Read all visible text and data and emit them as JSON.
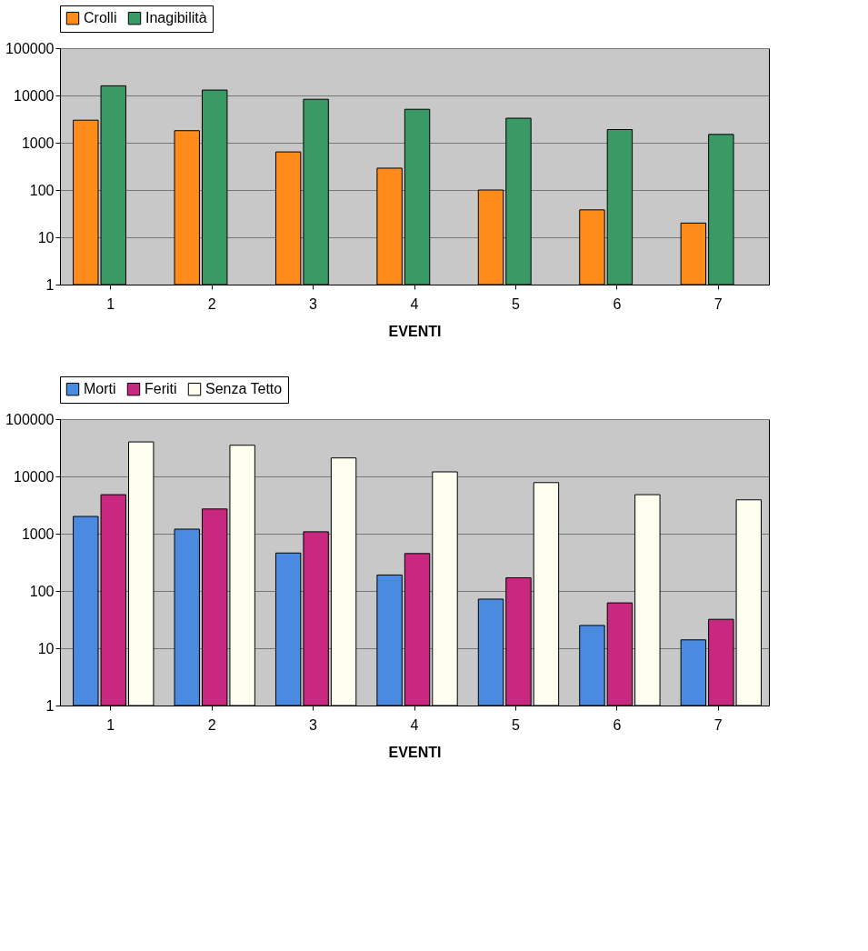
{
  "chart_data": [
    {
      "type": "bar",
      "xlabel": "EVENTI",
      "categories": [
        "1",
        "2",
        "3",
        "4",
        "5",
        "6",
        "7"
      ],
      "log": true,
      "ylim": [
        1,
        100000
      ],
      "yticks": [
        1,
        10,
        100,
        1000,
        10000,
        100000
      ],
      "grid": "y",
      "legend": "top",
      "series": [
        {
          "name": "Crolli",
          "color": "#ff8c1a",
          "values": [
            3000,
            1800,
            640,
            290,
            100,
            38,
            20
          ]
        },
        {
          "name": "Inagibilità",
          "color": "#3a9a66",
          "values": [
            16000,
            13000,
            8300,
            5100,
            3300,
            1900,
            1500
          ]
        }
      ]
    },
    {
      "type": "bar",
      "xlabel": "EVENTI",
      "categories": [
        "1",
        "2",
        "3",
        "4",
        "5",
        "6",
        "7"
      ],
      "log": true,
      "ylim": [
        1,
        100000
      ],
      "yticks": [
        1,
        10,
        100,
        1000,
        10000,
        100000
      ],
      "grid": "y",
      "legend": "top",
      "series": [
        {
          "name": "Morti",
          "color": "#4a8ae0",
          "values": [
            2000,
            1200,
            460,
            190,
            72,
            25,
            14
          ]
        },
        {
          "name": "Feriti",
          "color": "#c8287f",
          "values": [
            4800,
            2700,
            1080,
            450,
            170,
            62,
            32
          ]
        },
        {
          "name": "Senza Tetto",
          "color": "#fffff0",
          "values": [
            40000,
            35000,
            21000,
            12000,
            7800,
            4800,
            3900
          ]
        }
      ]
    }
  ]
}
